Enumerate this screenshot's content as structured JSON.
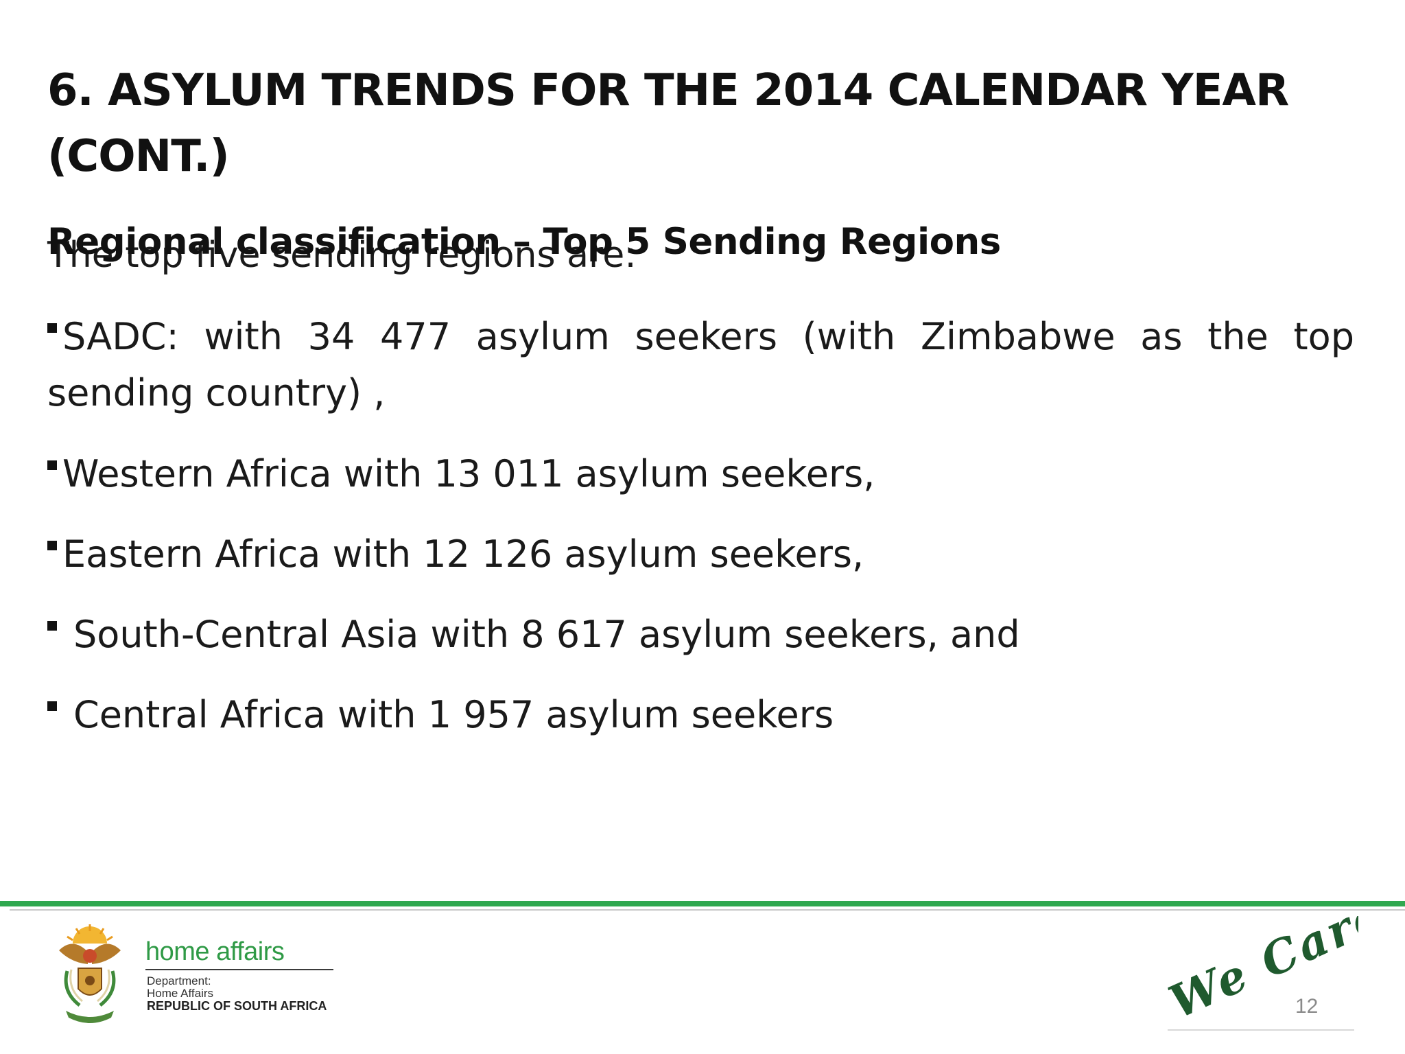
{
  "slide": {
    "title": "6. ASYLUM TRENDS FOR THE 2014 CALENDAR YEAR (CONT.)",
    "subtitle": "Regional classification – Top 5 Sending Regions",
    "intro": "The top five sending regions are:",
    "bullets": [
      "SADC: with 34 477 asylum seekers (with Zimbabwe as the top sending country) ,",
      "Western Africa  with 13 011 asylum seekers,",
      "Eastern Africa  with 12 126 asylum seekers,",
      "South-Central Asia with 8 617 asylum seekers, and",
      "Central Africa with 1 957 asylum seekers"
    ]
  },
  "footer": {
    "logo_icon": "coat-of-arms-icon",
    "brand": "home affairs",
    "dept_line_1": "Department:",
    "dept_line_2": "Home Affairs",
    "dept_line_3": "REPUBLIC OF SOUTH AFRICA",
    "slogan": "We Care!",
    "page_number": "12"
  },
  "colors": {
    "accent_green": "#2fa84f",
    "brand_green": "#2f9a46",
    "slogan_green": "#1f5a2e",
    "text": "#1a1a1a"
  }
}
